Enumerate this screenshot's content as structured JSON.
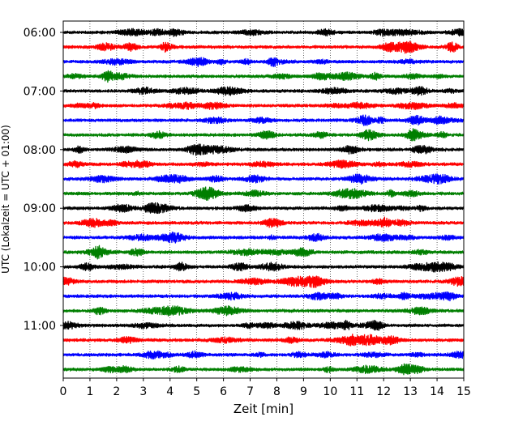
{
  "chart_data": {
    "type": "line",
    "subtype": "seismogram helicorder",
    "xlabel": "Zeit  [min]",
    "ylabel": "UTC (Lokalzeit = UTC + 01:00)",
    "xlim": [
      0,
      15
    ],
    "x_ticks": [
      0,
      1,
      2,
      3,
      4,
      5,
      6,
      7,
      8,
      9,
      10,
      11,
      12,
      13,
      14,
      15
    ],
    "x_tick_labels": [
      "0",
      "1",
      "2",
      "3",
      "4",
      "5",
      "6",
      "7",
      "8",
      "9",
      "10",
      "11",
      "12",
      "13",
      "14",
      "15"
    ],
    "y_tick_labels": [
      "06:00",
      "07:00",
      "08:00",
      "09:00",
      "10:00",
      "11:00"
    ],
    "trace_start_times": [
      "06:00",
      "06:15",
      "06:30",
      "06:45",
      "07:00",
      "07:15",
      "07:30",
      "07:45",
      "08:00",
      "08:15",
      "08:30",
      "08:45",
      "09:00",
      "09:15",
      "09:30",
      "09:45",
      "10:00",
      "10:15",
      "10:30",
      "10:45",
      "11:00",
      "11:15",
      "11:30",
      "11:45"
    ],
    "trace_colors_cycle": [
      "#000000",
      "#ff0000",
      "#0000ff",
      "#007f00"
    ],
    "minutes_per_trace": 15,
    "vertical_grid": "dotted at each minute"
  }
}
